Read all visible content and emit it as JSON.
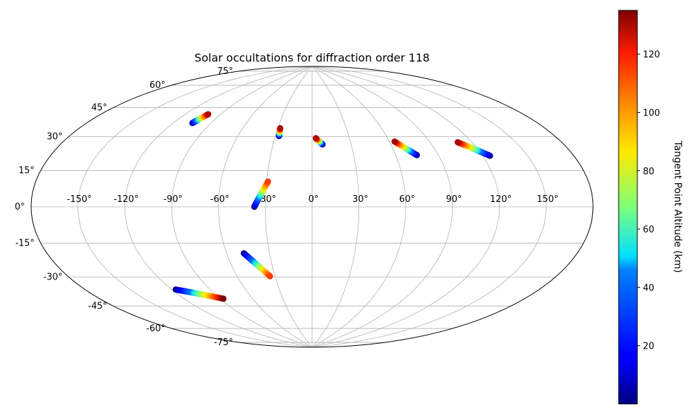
{
  "chart_data": {
    "type": "scatter",
    "title": "Solar occultations for diffraction order 118",
    "projection": "aitoff",
    "grid": true,
    "longitude_ticks": [
      -150,
      -120,
      -90,
      -60,
      -30,
      0,
      30,
      60,
      90,
      120,
      150
    ],
    "longitude_tick_labels": [
      "-150°",
      "-120°",
      "-90°",
      "-60°",
      "-30°",
      "0°",
      "30°",
      "60°",
      "90°",
      "120°",
      "150°"
    ],
    "latitude_ticks": [
      75,
      60,
      45,
      30,
      15,
      0,
      -15,
      -30,
      -45,
      -60,
      -75
    ],
    "latitude_tick_labels": [
      "75°",
      "60°",
      "45°",
      "30°",
      "15°",
      "0°",
      "-15°",
      "-30°",
      "-45°",
      "-60°",
      "-75°"
    ],
    "colorbar": {
      "label": "Tangent Point Altitude (km)",
      "colormap": "jet",
      "range": [
        0,
        135
      ],
      "ticks": [
        20,
        40,
        60,
        80,
        100,
        120
      ],
      "tick_labels": [
        "20",
        "40",
        "60",
        "80",
        "100",
        "120"
      ],
      "position": "right"
    },
    "series": [
      {
        "start": [
          -105,
          48
        ],
        "end": [
          -101,
          54
        ],
        "alt_range": [
          0,
          130
        ]
      },
      {
        "start": [
          -27,
          45
        ],
        "end": [
          -28,
          50
        ],
        "alt_range": [
          0,
          130
        ]
      },
      {
        "start": [
          8,
          40
        ],
        "end": [
          3,
          44
        ],
        "alt_range": [
          0,
          130
        ]
      },
      {
        "start": [
          75,
          31
        ],
        "end": [
          64,
          40
        ],
        "alt_range": [
          0,
          130
        ]
      },
      {
        "start": [
          125,
          27
        ],
        "end": [
          110,
          36
        ],
        "alt_range": [
          0,
          130
        ]
      },
      {
        "start": [
          -37,
          0
        ],
        "end": [
          -29,
          16
        ],
        "alt_range": [
          0,
          115
        ]
      },
      {
        "start": [
          -48,
          -29
        ],
        "end": [
          -34,
          -44
        ],
        "alt_range": [
          0,
          115
        ]
      },
      {
        "start": [
          -117,
          -46
        ],
        "end": [
          -87,
          -55
        ],
        "alt_range": [
          0,
          135
        ]
      }
    ]
  }
}
